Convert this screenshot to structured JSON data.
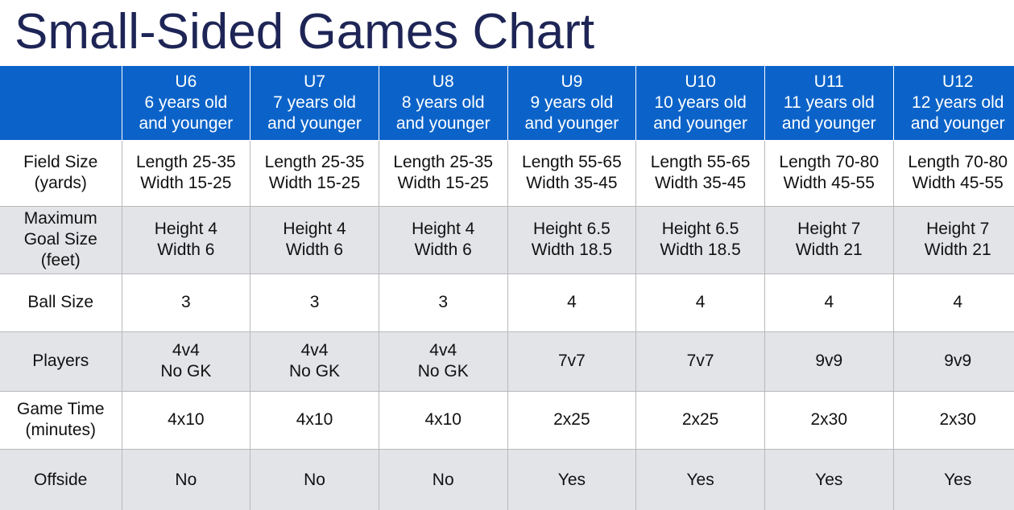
{
  "title": "Small-Sided Games Chart",
  "colors": {
    "title": "#1e2556",
    "header_bg": "#0b63c9",
    "header_text": "#ffffff",
    "alt_row_bg": "#e3e4e8",
    "grid": "#b9b9b9"
  },
  "columns": [
    {
      "age": "U6",
      "line1": "6 years old",
      "line2": "and younger"
    },
    {
      "age": "U7",
      "line1": "7 years old",
      "line2": "and younger"
    },
    {
      "age": "U8",
      "line1": "8 years old",
      "line2": "and younger"
    },
    {
      "age": "U9",
      "line1": "9 years old",
      "line2": "and younger"
    },
    {
      "age": "U10",
      "line1": "10 years old",
      "line2": "and younger"
    },
    {
      "age": "U11",
      "line1": "11 years old",
      "line2": "and younger"
    },
    {
      "age": "U12",
      "line1": "12 years old",
      "line2": "and younger"
    }
  ],
  "rows": [
    {
      "key": "field-size",
      "label": [
        "Field Size",
        "(yards)"
      ],
      "cells": [
        [
          "Length 25-35",
          "Width 15-25"
        ],
        [
          "Length 25-35",
          "Width 15-25"
        ],
        [
          "Length 25-35",
          "Width 15-25"
        ],
        [
          "Length 55-65",
          "Width 35-45"
        ],
        [
          "Length 55-65",
          "Width 35-45"
        ],
        [
          "Length 70-80",
          "Width 45-55"
        ],
        [
          "Length 70-80",
          "Width 45-55"
        ]
      ]
    },
    {
      "key": "goal-size",
      "label": [
        "Maximum",
        "Goal Size",
        "(feet)"
      ],
      "cells": [
        [
          "Height 4",
          "Width 6"
        ],
        [
          "Height 4",
          "Width 6"
        ],
        [
          "Height 4",
          "Width 6"
        ],
        [
          "Height 6.5",
          "Width 18.5"
        ],
        [
          "Height 6.5",
          "Width 18.5"
        ],
        [
          "Height 7",
          "Width 21"
        ],
        [
          "Height 7",
          "Width 21"
        ]
      ]
    },
    {
      "key": "ball-size",
      "label": [
        "Ball Size"
      ],
      "cells": [
        [
          "3"
        ],
        [
          "3"
        ],
        [
          "3"
        ],
        [
          "4"
        ],
        [
          "4"
        ],
        [
          "4"
        ],
        [
          "4"
        ]
      ]
    },
    {
      "key": "players",
      "label": [
        "Players"
      ],
      "cells": [
        [
          "4v4",
          "No GK"
        ],
        [
          "4v4",
          "No GK"
        ],
        [
          "4v4",
          "No GK"
        ],
        [
          "7v7"
        ],
        [
          "7v7"
        ],
        [
          "9v9"
        ],
        [
          "9v9"
        ]
      ]
    },
    {
      "key": "game-time",
      "label": [
        "Game Time",
        "(minutes)"
      ],
      "cells": [
        [
          "4x10"
        ],
        [
          "4x10"
        ],
        [
          "4x10"
        ],
        [
          "2x25"
        ],
        [
          "2x25"
        ],
        [
          "2x30"
        ],
        [
          "2x30"
        ]
      ]
    },
    {
      "key": "offside",
      "label": [
        "Offside"
      ],
      "cells": [
        [
          "No"
        ],
        [
          "No"
        ],
        [
          "No"
        ],
        [
          "Yes"
        ],
        [
          "Yes"
        ],
        [
          "Yes"
        ],
        [
          "Yes"
        ]
      ]
    }
  ]
}
